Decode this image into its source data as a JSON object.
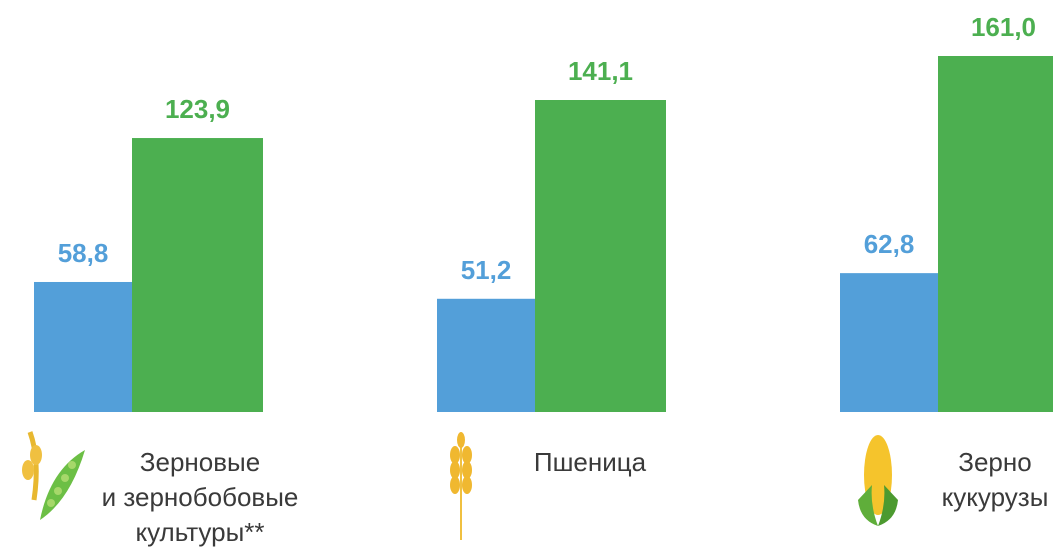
{
  "chart_data": {
    "type": "bar",
    "categories": [
      "Зерновые\nи зернобобовые\nкультуры**",
      "Пшеница",
      "Зерно\nкукурузы"
    ],
    "series": [
      {
        "color": "#539fd9",
        "values": [
          58.8,
          51.2,
          62.8
        ],
        "value_labels": [
          "58,8",
          "51,2",
          "62,8"
        ]
      },
      {
        "color": "#4caf50",
        "values": [
          123.9,
          141.1,
          161.0
        ],
        "value_labels": [
          "123,9",
          "141,1",
          "161,0"
        ]
      }
    ]
  }
}
